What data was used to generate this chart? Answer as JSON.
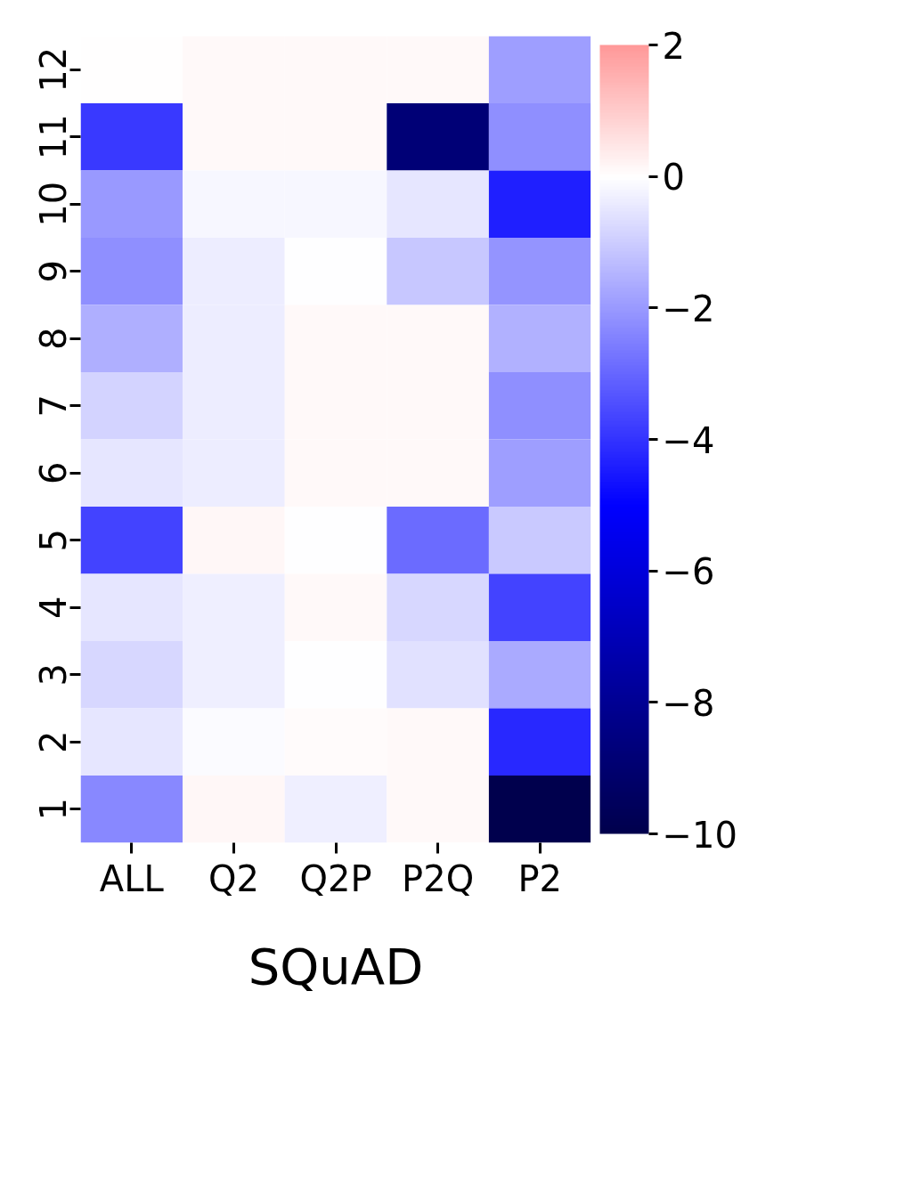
{
  "chart_data": {
    "type": "heatmap",
    "xlabel": "SQuAD",
    "categories": [
      "ALL",
      "Q2",
      "Q2P",
      "P2Q",
      "P2"
    ],
    "y_categories": [
      "12",
      "11",
      "10",
      "9",
      "8",
      "7",
      "6",
      "5",
      "4",
      "3",
      "2",
      "1"
    ],
    "cells": [
      [
        0.0,
        0.1,
        0.1,
        0.1,
        -1.9
      ],
      [
        -3.9,
        0.1,
        0.1,
        -8.8,
        -2.2
      ],
      [
        -2.0,
        -0.2,
        -0.2,
        -0.5,
        -4.4
      ],
      [
        -2.2,
        -0.35,
        -0.05,
        -1.1,
        -2.1
      ],
      [
        -1.6,
        -0.35,
        0.1,
        0.1,
        -1.55
      ],
      [
        -0.9,
        -0.35,
        0.1,
        0.1,
        -2.2
      ],
      [
        -0.5,
        -0.35,
        0.1,
        0.1,
        -1.9
      ],
      [
        -3.7,
        0.15,
        -0.05,
        -2.9,
        -1.05
      ],
      [
        -0.5,
        -0.3,
        0.1,
        -0.8,
        -3.7
      ],
      [
        -0.8,
        -0.3,
        -0.05,
        -0.6,
        -1.7
      ],
      [
        -0.5,
        -0.1,
        0.05,
        0.1,
        -4.2
      ],
      [
        -2.35,
        0.15,
        -0.3,
        0.1,
        -10.0
      ]
    ],
    "clim": [
      -10,
      2
    ],
    "cticks": [
      {
        "value": -10,
        "label": "−10"
      },
      {
        "value": -8,
        "label": "−8"
      },
      {
        "value": -6,
        "label": "−6"
      },
      {
        "value": -4,
        "label": "−4"
      },
      {
        "value": -2,
        "label": "−2"
      },
      0,
      2
    ]
  }
}
